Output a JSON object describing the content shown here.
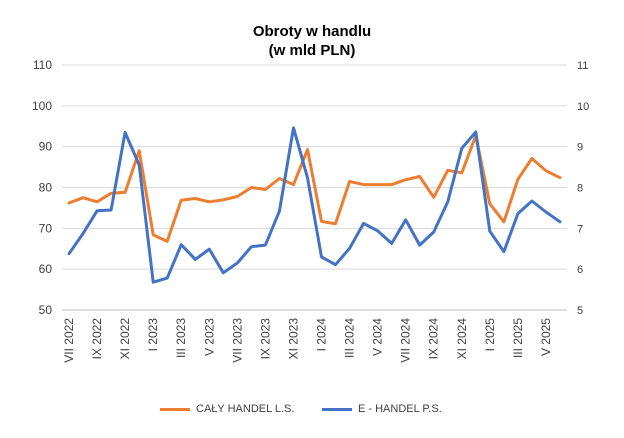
{
  "chart_data": {
    "type": "line",
    "title": [
      "Obroty w handlu",
      "(w mld PLN)"
    ],
    "categories": [
      "VII 2022",
      "VIII 2022",
      "IX 2022",
      "X 2022",
      "XI 2022",
      "XII 2022",
      "I 2023",
      "II 2023",
      "III 2023",
      "IV 2023",
      "V 2023",
      "VI 2023",
      "VII 2023",
      "VIII 2023",
      "IX 2023",
      "X 2023",
      "XI 2023",
      "XII 2023",
      "I 2024",
      "II 2024",
      "III 2024",
      "IV 2024",
      "V 2024",
      "VI 2024",
      "VII 2024",
      "VIII 2024",
      "IX 2024",
      "X 2024",
      "XI 2024",
      "XII 2024",
      "I 2025",
      "II 2025",
      "III 2025",
      "IV 2025",
      "V 2025",
      "VI 2025"
    ],
    "x_tick_labels": [
      "VII 2022",
      "IX 2022",
      "XI 2022",
      "I 2023",
      "III 2023",
      "V 2023",
      "VII 2023",
      "IX 2023",
      "XI 2023",
      "I 2024",
      "III 2024",
      "V 2024",
      "VII 2024",
      "IX 2024",
      "XI 2024",
      "I 2025",
      "III 2025",
      "V 2025"
    ],
    "left_axis": {
      "ylim": [
        50,
        110
      ],
      "ticks": [
        50,
        60,
        70,
        80,
        90,
        100,
        110
      ]
    },
    "right_axis": {
      "ylim": [
        5,
        11
      ],
      "ticks": [
        5,
        6,
        7,
        8,
        9,
        10,
        11
      ]
    },
    "series": [
      {
        "name": "CAŁY HANDEL L.S.",
        "axis": "left",
        "color": "#ED7D31",
        "values": [
          76.2,
          77.5,
          76.5,
          78.6,
          78.8,
          89.0,
          68.4,
          66.8,
          76.9,
          77.3,
          76.5,
          77.0,
          77.8,
          80.0,
          79.5,
          82.2,
          80.7,
          89.3,
          71.7,
          71.1,
          81.5,
          80.7,
          80.7,
          80.7,
          81.9,
          82.7,
          77.6,
          84.2,
          83.6,
          92.7,
          76.0,
          71.6,
          82.0,
          87.1,
          84.1,
          82.4
        ]
      },
      {
        "name": "E - HANDEL P.S.",
        "axis": "right",
        "color": "#4472C4",
        "values": [
          6.38,
          6.87,
          7.43,
          7.45,
          9.35,
          8.55,
          5.68,
          5.78,
          6.6,
          6.24,
          6.49,
          5.91,
          6.15,
          6.55,
          6.59,
          7.42,
          9.46,
          8.24,
          6.3,
          6.11,
          6.51,
          7.12,
          6.94,
          6.63,
          7.21,
          6.59,
          6.91,
          7.65,
          8.96,
          9.36,
          6.93,
          6.43,
          7.36,
          7.67,
          7.4,
          7.16
        ]
      }
    ],
    "legend": "bottom",
    "grid": true
  }
}
